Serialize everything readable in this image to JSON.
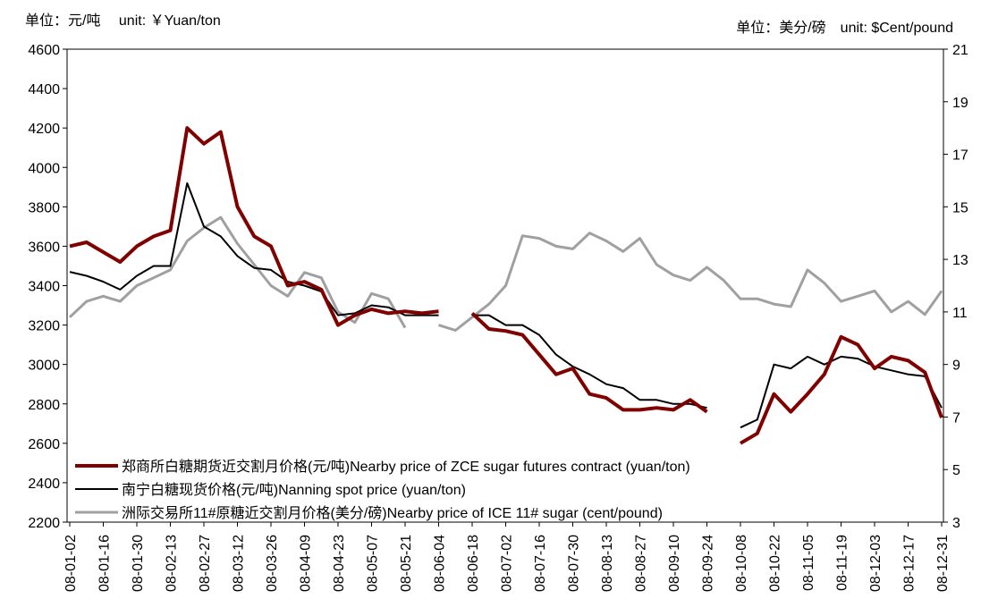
{
  "chart_data": {
    "type": "line",
    "left_unit_label": "单位：元/吨　 unit: ￥Yuan/ton",
    "right_unit_label": "单位：美分/磅　unit: $Cent/pound",
    "categories": [
      "08-01-02",
      null,
      "08-01-16",
      null,
      "08-01-30",
      null,
      "08-02-13",
      null,
      "08-02-27",
      null,
      "08-03-12",
      null,
      "08-03-26",
      null,
      "08-04-09",
      null,
      "08-04-23",
      null,
      "08-05-07",
      null,
      "08-05-21",
      null,
      "08-06-04",
      null,
      "08-06-18",
      null,
      "08-07-02",
      null,
      "08-07-16",
      null,
      "08-07-30",
      null,
      "08-08-13",
      null,
      "08-08-27",
      null,
      "08-09-10",
      null,
      "08-09-24",
      null,
      "08-10-08",
      null,
      "08-10-22",
      null,
      "08-11-05",
      null,
      "08-11-19",
      null,
      "08-12-03",
      null,
      "08-12-17",
      null,
      "08-12-31"
    ],
    "series": [
      {
        "name": "郑商所白糖期货近交割月价格(元/吨)Nearby price of ZCE sugar futures contract (yuan/ton)",
        "color": "#800000",
        "width": 4,
        "values": [
          3600,
          3620,
          3570,
          3520,
          3600,
          3650,
          3680,
          4200,
          4120,
          4180,
          3800,
          3650,
          3600,
          3400,
          3420,
          3380,
          3200,
          3250,
          3280,
          3260,
          3270,
          3260,
          3270,
          null,
          3260,
          3180,
          3170,
          3150,
          3050,
          2950,
          2980,
          2850,
          2830,
          2770,
          2770,
          2780,
          2770,
          2820,
          2760,
          null,
          2600,
          2650,
          2850,
          2760,
          2850,
          2950,
          3140,
          3100,
          2980,
          3040,
          3020,
          2960,
          2730
        ]
      },
      {
        "name": "南宁白糖现货价格(元/吨)Nanning spot price (yuan/ton)",
        "color": "#000000",
        "width": 2,
        "values": [
          3470,
          3450,
          3420,
          3380,
          3450,
          3500,
          3500,
          3920,
          3700,
          3650,
          3550,
          3490,
          3480,
          3420,
          3400,
          3370,
          3250,
          3260,
          3300,
          3290,
          3250,
          3250,
          3250,
          null,
          3250,
          3250,
          3200,
          3200,
          3150,
          3050,
          2990,
          2950,
          2900,
          2880,
          2820,
          2820,
          2800,
          2800,
          2780,
          null,
          2680,
          2720,
          3000,
          2980,
          3040,
          3000,
          3040,
          3030,
          2990,
          2970,
          2950,
          2940,
          2780
        ]
      },
      {
        "name": "洲际交易所11#原糖近交割月价格(美分/磅)Nearby price of ICE 11# sugar (cent/pound)",
        "color": "#a0a0a0",
        "width": 3,
        "axis": "y2",
        "values": [
          10.8,
          11.4,
          11.6,
          11.4,
          12.0,
          12.3,
          12.6,
          13.7,
          14.2,
          14.6,
          13.6,
          12.8,
          12.0,
          11.6,
          12.5,
          12.3,
          11.0,
          10.6,
          11.7,
          11.5,
          10.4,
          null,
          10.5,
          10.3,
          10.8,
          11.3,
          12.0,
          13.9,
          13.8,
          13.5,
          13.4,
          14.0,
          13.7,
          13.3,
          13.8,
          12.8,
          12.4,
          12.2,
          12.7,
          12.2,
          11.5,
          11.5,
          11.3,
          11.2,
          12.6,
          12.1,
          11.4,
          11.6,
          11.8,
          11.0,
          11.4,
          10.9,
          11.8
        ]
      }
    ],
    "ylim": [
      2200,
      4600
    ],
    "yticks": [
      2200,
      2400,
      2600,
      2800,
      3000,
      3200,
      3400,
      3600,
      3800,
      4000,
      4200,
      4400,
      4600
    ],
    "y2lim": [
      3,
      21
    ],
    "y2ticks": [
      3,
      5,
      7,
      9,
      11,
      13,
      15,
      17,
      19,
      21
    ],
    "legend": "lower left",
    "grid": false
  }
}
